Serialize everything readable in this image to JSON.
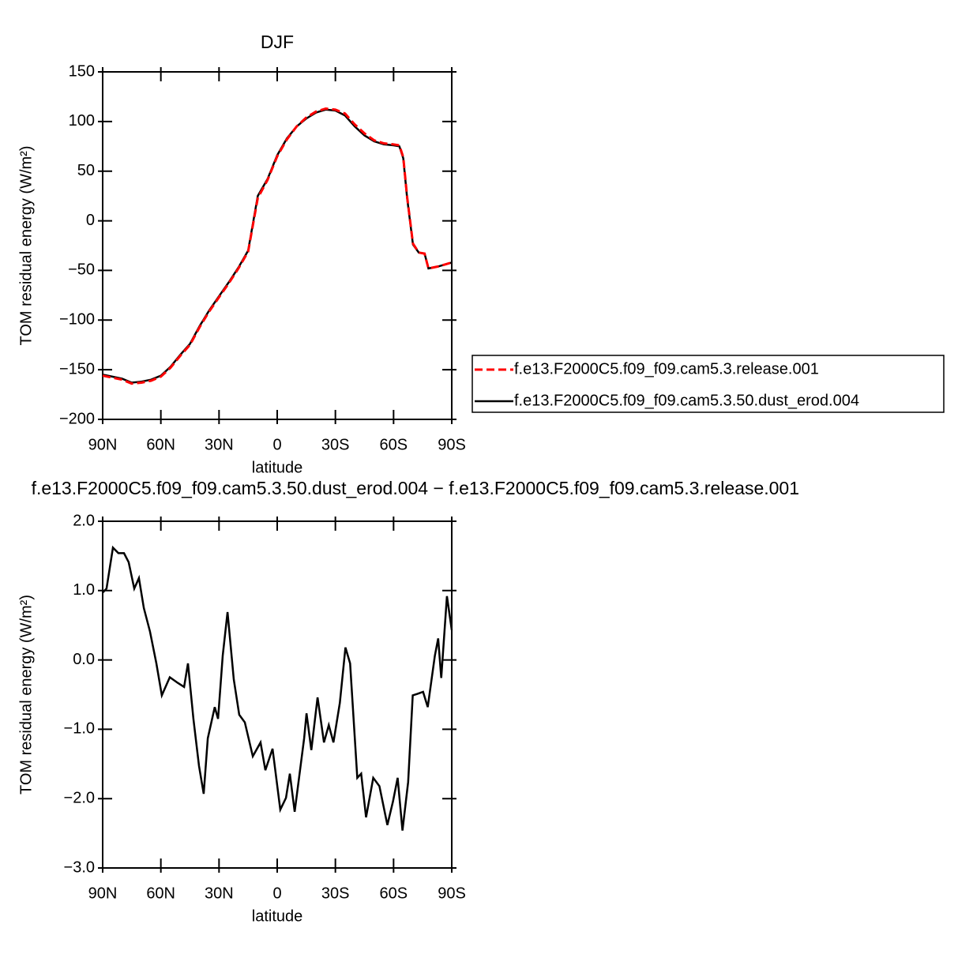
{
  "chart_data": [
    {
      "type": "line",
      "title": "DJF",
      "xlabel": "latitude",
      "ylabel": "TOM residual energy (W/m²)",
      "x": [
        -90,
        -85,
        -80,
        -75,
        -70,
        -65,
        -60,
        -55,
        -50,
        -45,
        -40,
        -35,
        -30,
        -25,
        -20,
        -15,
        -10,
        -5,
        0,
        5,
        10,
        15,
        20,
        25,
        30,
        35,
        40,
        45,
        50,
        55,
        60,
        63,
        65,
        67,
        70,
        73,
        76,
        78,
        83,
        90
      ],
      "series": [
        {
          "name": "f.e13.F2000C5.f09_f09.cam5.3.release.001",
          "color": "#ff0000",
          "dash": true,
          "values": [
            -156,
            -158,
            -160,
            -164,
            -163,
            -161,
            -157,
            -148,
            -136,
            -125,
            -107,
            -91,
            -77,
            -63,
            -48,
            -31,
            23,
            41,
            65,
            82,
            95,
            104,
            110,
            113,
            112,
            108,
            97,
            88,
            81,
            78,
            77,
            76,
            64,
            24,
            -23,
            -32,
            -33,
            -48,
            -46,
            -42
          ]
        },
        {
          "name": "f.e13.F2000C5.f09_f09.cam5.3.50.dust_erod.004",
          "color": "#000000",
          "values": [
            -155,
            -157,
            -159,
            -163,
            -162,
            -160,
            -156,
            -147,
            -135,
            -124,
            -106,
            -90,
            -76,
            -62,
            -47,
            -30,
            25,
            42,
            66,
            83,
            95,
            103,
            109,
            112,
            111,
            106,
            95,
            86,
            80,
            77,
            76,
            75,
            63,
            23,
            -24,
            -32,
            -33,
            -48,
            -46,
            -42
          ]
        }
      ],
      "xlim": [
        -90,
        90
      ],
      "xticks": [
        {
          "value": -90,
          "label": "90N"
        },
        {
          "value": -60,
          "label": "60N"
        },
        {
          "value": -30,
          "label": "30N"
        },
        0,
        {
          "value": 30,
          "label": "30S"
        },
        {
          "value": 60,
          "label": "60S"
        },
        {
          "value": 90,
          "label": "90S"
        }
      ],
      "ylim": [
        -200,
        150
      ],
      "yticks": [
        {
          "value": -200,
          "label": "−200"
        },
        {
          "value": -150,
          "label": "−150"
        },
        {
          "value": -100,
          "label": "−100"
        },
        {
          "value": -50,
          "label": "−50"
        },
        0,
        50,
        100,
        150
      ],
      "legend": "right"
    },
    {
      "type": "line",
      "title": "f.e13.F2000C5.f09_f09.cam5.3.50.dust_erod.004 − f.e13.F2000C5.f09_f09.cam5.3.release.001",
      "xlabel": "latitude",
      "ylabel": "TOM residual energy (W/m²)",
      "x": [
        -90,
        -88,
        -84.7,
        -81.9,
        -79,
        -76.6,
        -73.7,
        -71.3,
        -68.8,
        -65.6,
        -62.3,
        -59.5,
        -55.4,
        -51.3,
        -48,
        -46,
        -43.2,
        -40.3,
        -37.9,
        -35.8,
        -32.2,
        -30.5,
        -28.1,
        -25.6,
        -22.4,
        -19.6,
        -16.7,
        -12.6,
        -8.6,
        -6.1,
        -2.4,
        1.6,
        4.5,
        6.5,
        9,
        13.9,
        15.1,
        17.6,
        20.8,
        24.1,
        26.6,
        29,
        32.3,
        35.2,
        37.6,
        41.3,
        43.3,
        45.8,
        49.5,
        52.7,
        56.8,
        59.7,
        62.1,
        64.6,
        67.5,
        69.9,
        72.3,
        75.2,
        77.6,
        81.3,
        83,
        84.6,
        87.5,
        90
      ],
      "series": [
        {
          "color": "#000000",
          "values": [
            0.97,
            1.03,
            1.62,
            1.54,
            1.54,
            1.41,
            1.03,
            1.18,
            0.75,
            0.41,
            -0.05,
            -0.51,
            -0.25,
            -0.33,
            -0.39,
            -0.05,
            -0.85,
            -1.53,
            -1.93,
            -1.13,
            -0.68,
            -0.85,
            0.06,
            0.69,
            -0.28,
            -0.79,
            -0.9,
            -1.39,
            -1.19,
            -1.59,
            -1.28,
            -2.16,
            -1.99,
            -1.64,
            -2.19,
            -1.13,
            -0.77,
            -1.3,
            -0.54,
            -1.19,
            -0.94,
            -1.19,
            -0.62,
            0.18,
            -0.05,
            -1.7,
            -1.64,
            -2.27,
            -1.7,
            -1.82,
            -2.38,
            -2.04,
            -1.7,
            -2.46,
            -1.76,
            -0.51,
            -0.49,
            -0.46,
            -0.68,
            0.06,
            0.31,
            -0.26,
            0.92,
            0.43
          ]
        }
      ],
      "xlim": [
        -90,
        90
      ],
      "xticks": [
        {
          "value": -90,
          "label": "90N"
        },
        {
          "value": -60,
          "label": "60N"
        },
        {
          "value": -30,
          "label": "30N"
        },
        0,
        {
          "value": 30,
          "label": "30S"
        },
        {
          "value": 60,
          "label": "60S"
        },
        {
          "value": 90,
          "label": "90S"
        }
      ],
      "ylim": [
        -3,
        2
      ],
      "yticks": [
        {
          "value": -3,
          "label": "−3.0"
        },
        {
          "value": -2,
          "label": "−2.0"
        },
        {
          "value": -1,
          "label": "−1.0"
        },
        {
          "value": 0,
          "label": "0.0"
        },
        {
          "value": 1,
          "label": "1.0"
        },
        {
          "value": 2,
          "label": "2.0"
        }
      ]
    }
  ]
}
